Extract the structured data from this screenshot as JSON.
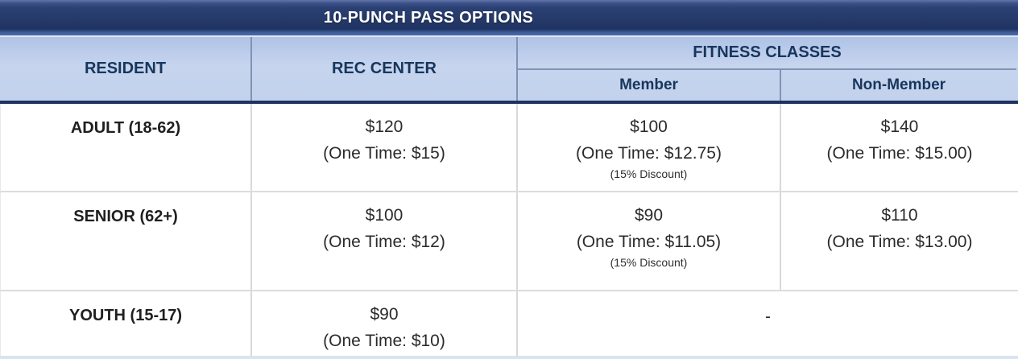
{
  "table": {
    "title": "10-PUNCH PASS OPTIONS",
    "headers": {
      "resident": "RESIDENT",
      "rec_center": "REC CENTER",
      "fitness_classes": "FITNESS CLASSES",
      "member": "Member",
      "non_member": "Non-Member"
    },
    "rows": [
      {
        "category": "ADULT (18-62)",
        "rec_center_price": "$120",
        "rec_center_one_time": "(One Time: $15)",
        "member_price": "$100",
        "member_one_time": "(One Time: $12.75)",
        "member_discount": "(15% Discount)",
        "non_member_price": "$140",
        "non_member_one_time": "(One Time: $15.00)"
      },
      {
        "category": "SENIOR (62+)",
        "rec_center_price": "$100",
        "rec_center_one_time": "(One Time: $12)",
        "member_price": "$90",
        "member_one_time": "(One Time: $11.05)",
        "member_discount": "(15% Discount)",
        "non_member_price": "$110",
        "non_member_one_time": "(One Time: $13.00)"
      },
      {
        "category": "YOUTH (15-17)",
        "rec_center_price": "$90",
        "rec_center_one_time": "(One Time: $10)",
        "fitness_value": "-"
      }
    ],
    "colors": {
      "title_bar_navy": "#253a6a",
      "title_bar_accent": "#4f67a4",
      "header_bg": "#c3d2ec",
      "header_text": "#17365d",
      "header_divider": "#8093b6",
      "thick_border": "#1c3361",
      "row_divider": "#dcdcdc",
      "body_text": "#2b2b2b"
    }
  }
}
